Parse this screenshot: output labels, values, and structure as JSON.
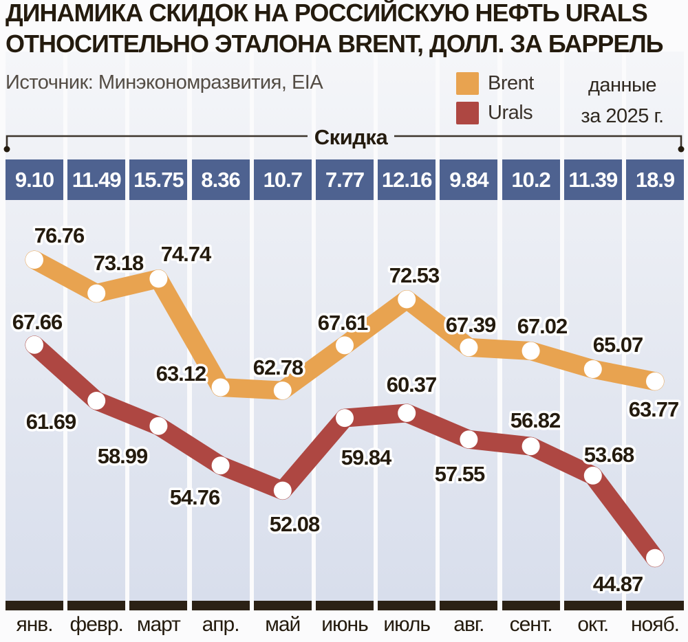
{
  "title": {
    "line1": "ДИНАМИКА СКИДОК НА РОССИЙСКУЮ НЕФТЬ URALS",
    "line2": "ОТНОСИТЕЛЬНО ЭТАЛОНА BRENT, ДОЛЛ. ЗА БАРРЕЛЬ"
  },
  "source": "Источник: Минэкономразвития, EIA",
  "legend": {
    "items": [
      {
        "label": "Brent",
        "color": "#E8A350"
      },
      {
        "label": "Urals",
        "color": "#AE4742"
      }
    ],
    "note_line1": "данные",
    "note_line2": "за 2025 г."
  },
  "discount_bracket": {
    "label": "Скидка"
  },
  "chart_data": {
    "type": "line",
    "title": "Динамика скидок на российскую нефть Urals относительно эталона Brent, долл. за баррель",
    "categories": [
      "янв.",
      "февр.",
      "март",
      "апр.",
      "май",
      "июнь",
      "июль",
      "авг.",
      "сент.",
      "окт.",
      "нояб."
    ],
    "series": [
      {
        "name": "Brent",
        "color": "#E8A350",
        "values": [
          76.76,
          73.18,
          74.74,
          63.12,
          62.78,
          67.61,
          72.53,
          67.39,
          67.02,
          65.07,
          63.77
        ]
      },
      {
        "name": "Urals",
        "color": "#AE4742",
        "values": [
          67.66,
          61.69,
          58.99,
          54.76,
          52.08,
          59.84,
          60.37,
          57.55,
          56.82,
          53.68,
          44.87
        ]
      }
    ],
    "discounts": [
      "9.10",
      "11.49",
      "15.75",
      "8.36",
      "10.7",
      "7.77",
      "12.16",
      "9.84",
      "10.2",
      "11.39",
      "18.9"
    ],
    "discounts_row_label": "Скидка",
    "unit": "долл. за баррель",
    "ylim": [
      44,
      78
    ],
    "grid": "vertical-bands",
    "legend_position": "top-right",
    "value_labels": true
  }
}
